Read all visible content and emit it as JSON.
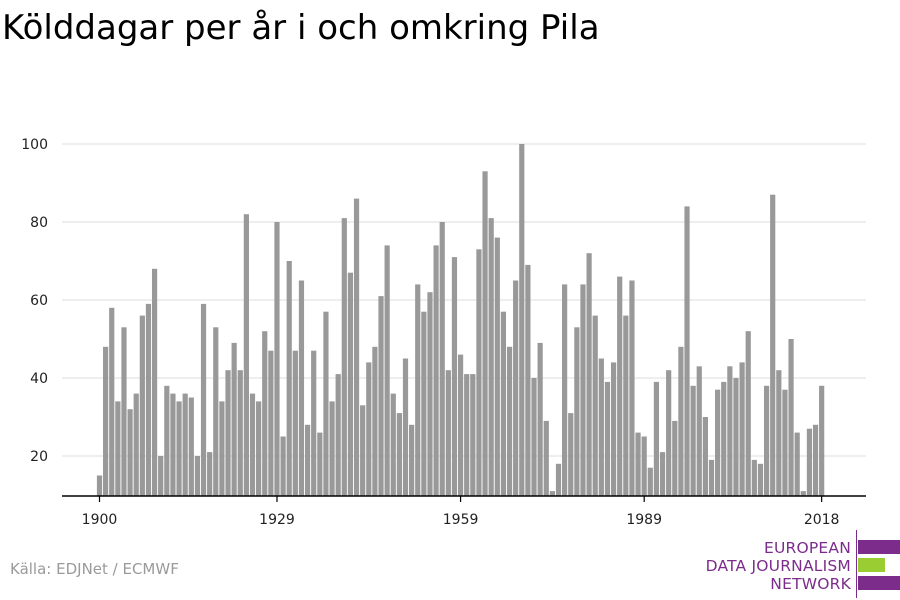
{
  "title": "Kölddagar per år i och omkring Pila",
  "source": "Källa: EDJNet / ECMWF",
  "logo": {
    "line1": "EUROPEAN",
    "line2": "DATA JOURNALISM",
    "line3": "NETWORK"
  },
  "colors": {
    "bar": "#999999",
    "grid": "#dddddd",
    "axis": "#000000",
    "logo_purple": "#7c2d8c",
    "logo_green": "#9acd32"
  },
  "chart_data": {
    "type": "bar",
    "x_tick_labels": [
      "1900",
      "1929",
      "1959",
      "1989",
      "2018"
    ],
    "y_tick_labels": [
      "20",
      "40",
      "60",
      "80",
      "100"
    ],
    "xlim": [
      1900,
      2018
    ],
    "ylim": [
      10,
      100
    ],
    "grid": true,
    "x": [
      1900,
      1901,
      1902,
      1903,
      1904,
      1905,
      1906,
      1907,
      1908,
      1909,
      1910,
      1911,
      1912,
      1913,
      1914,
      1915,
      1916,
      1917,
      1918,
      1919,
      1920,
      1921,
      1922,
      1923,
      1924,
      1925,
      1926,
      1927,
      1928,
      1929,
      1930,
      1931,
      1932,
      1933,
      1934,
      1935,
      1936,
      1937,
      1938,
      1939,
      1940,
      1941,
      1942,
      1943,
      1944,
      1945,
      1946,
      1947,
      1948,
      1949,
      1950,
      1951,
      1952,
      1953,
      1954,
      1955,
      1956,
      1957,
      1958,
      1959,
      1960,
      1961,
      1962,
      1963,
      1964,
      1965,
      1966,
      1967,
      1968,
      1969,
      1970,
      1971,
      1972,
      1973,
      1974,
      1975,
      1976,
      1977,
      1978,
      1979,
      1980,
      1981,
      1982,
      1983,
      1984,
      1985,
      1986,
      1987,
      1988,
      1989,
      1990,
      1991,
      1992,
      1993,
      1994,
      1995,
      1996,
      1997,
      1998,
      1999,
      2000,
      2001,
      2002,
      2003,
      2004,
      2005,
      2006,
      2007,
      2008,
      2009,
      2010,
      2011,
      2012,
      2013,
      2014,
      2015,
      2016,
      2017,
      2018
    ],
    "values": [
      15,
      48,
      58,
      34,
      53,
      32,
      36,
      56,
      59,
      68,
      20,
      38,
      36,
      34,
      36,
      35,
      20,
      59,
      21,
      53,
      34,
      42,
      49,
      42,
      82,
      36,
      34,
      52,
      47,
      80,
      25,
      70,
      47,
      65,
      28,
      47,
      26,
      57,
      34,
      41,
      81,
      67,
      86,
      33,
      44,
      48,
      61,
      74,
      36,
      31,
      45,
      28,
      64,
      57,
      62,
      74,
      80,
      42,
      71,
      46,
      41,
      41,
      73,
      93,
      81,
      76,
      57,
      48,
      65,
      100,
      69,
      40,
      49,
      29,
      11,
      18,
      64,
      31,
      53,
      64,
      72,
      56,
      45,
      39,
      44,
      66,
      56,
      65,
      26,
      25,
      17,
      39,
      21,
      42,
      29,
      48,
      84,
      38,
      43,
      30,
      19,
      37,
      39,
      43,
      40,
      44,
      52,
      19,
      18,
      38,
      87,
      42,
      37,
      50,
      26,
      11,
      27,
      28,
      38
    ]
  }
}
